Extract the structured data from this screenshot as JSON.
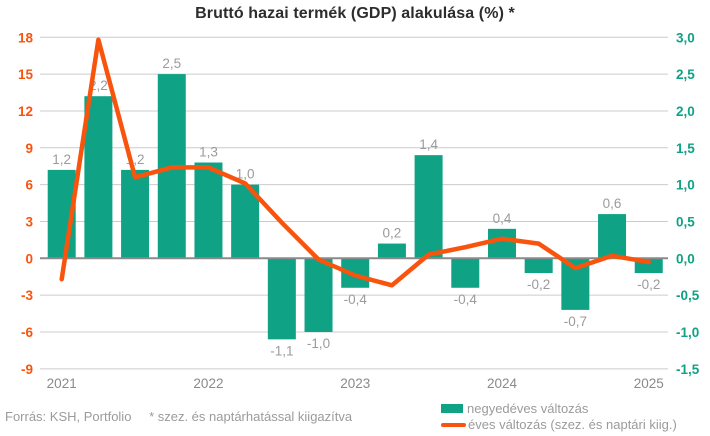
{
  "title": "Bruttó hazai termék (GDP) alakulása (%) *",
  "footer": {
    "source": "Forrás: KSH, Portfolio",
    "note": "* szez. és naptárhatással kiigazítva"
  },
  "legend": [
    {
      "label": "negyedéves változás",
      "type": "bar",
      "color": "#0fa284"
    },
    {
      "label": "éves változás (szez. és naptári kiig.)",
      "type": "line",
      "color": "#f8540d"
    }
  ],
  "colors": {
    "bar": "#0fa284",
    "line": "#f8540d",
    "left_axis_text": "#f8540d",
    "right_axis_text": "#0fa284",
    "gridline": "#cccccc",
    "zero_line": "#8a8a8a",
    "value_label": "#9b9b9b",
    "x_axis_text": "#8a8a8a",
    "title_text": "#2d2d2d"
  },
  "chart_data": {
    "type": "combo",
    "categories": [
      "2021 Q1",
      "2021 Q2",
      "2021 Q3",
      "2021 Q4",
      "2022 Q1",
      "2022 Q2",
      "2022 Q3",
      "2022 Q4",
      "2023 Q1",
      "2023 Q2",
      "2023 Q3",
      "2023 Q4",
      "2024 Q1",
      "2024 Q2",
      "2024 Q3",
      "2024 Q4",
      "2025 Q1"
    ],
    "x_tick_labels": [
      "2021",
      "2022",
      "2023",
      "2024",
      "2025"
    ],
    "x_tick_indices": [
      0,
      4,
      8,
      12,
      16
    ],
    "series": [
      {
        "name": "negyedéves változás",
        "type": "bar",
        "axis": "right",
        "color": "#0fa284",
        "values": [
          1.2,
          2.2,
          1.2,
          2.5,
          1.3,
          1.0,
          -1.1,
          -1.0,
          -0.4,
          0.2,
          1.4,
          -0.4,
          0.4,
          -0.2,
          -0.7,
          0.6,
          -0.2
        ],
        "labels": [
          "1,2",
          "2,2",
          "1,2",
          "2,5",
          "1,3",
          "1,0",
          "-1,1",
          "-1,0",
          "-0,4",
          "0,2",
          "1,4",
          "-0,4",
          "0,4",
          "-0,2",
          "-0,7",
          "0,6",
          "-0,2"
        ]
      },
      {
        "name": "éves változás (szez. és naptári kiig.)",
        "type": "line",
        "axis": "left",
        "color": "#f8540d",
        "values": [
          -1.7,
          17.8,
          6.6,
          7.4,
          7.4,
          6.1,
          2.9,
          -0.1,
          -1.4,
          -2.2,
          0.3,
          0.9,
          1.6,
          1.2,
          -0.8,
          0.2,
          -0.3
        ]
      }
    ],
    "left_axis": {
      "ticks": [
        18,
        15,
        12,
        9,
        6,
        3,
        0,
        -3,
        -6,
        -9
      ],
      "range": [
        -9,
        18
      ],
      "color": "#f8540d"
    },
    "right_axis": {
      "ticks": [
        "3,0",
        "2,5",
        "2,0",
        "1,5",
        "1,0",
        "0,5",
        "0,0",
        "-0,5",
        "-1,0",
        "-1,5"
      ],
      "range": [
        -1.5,
        3.0
      ],
      "color": "#0fa284"
    },
    "grid": true,
    "legend_position": "bottom-right"
  }
}
